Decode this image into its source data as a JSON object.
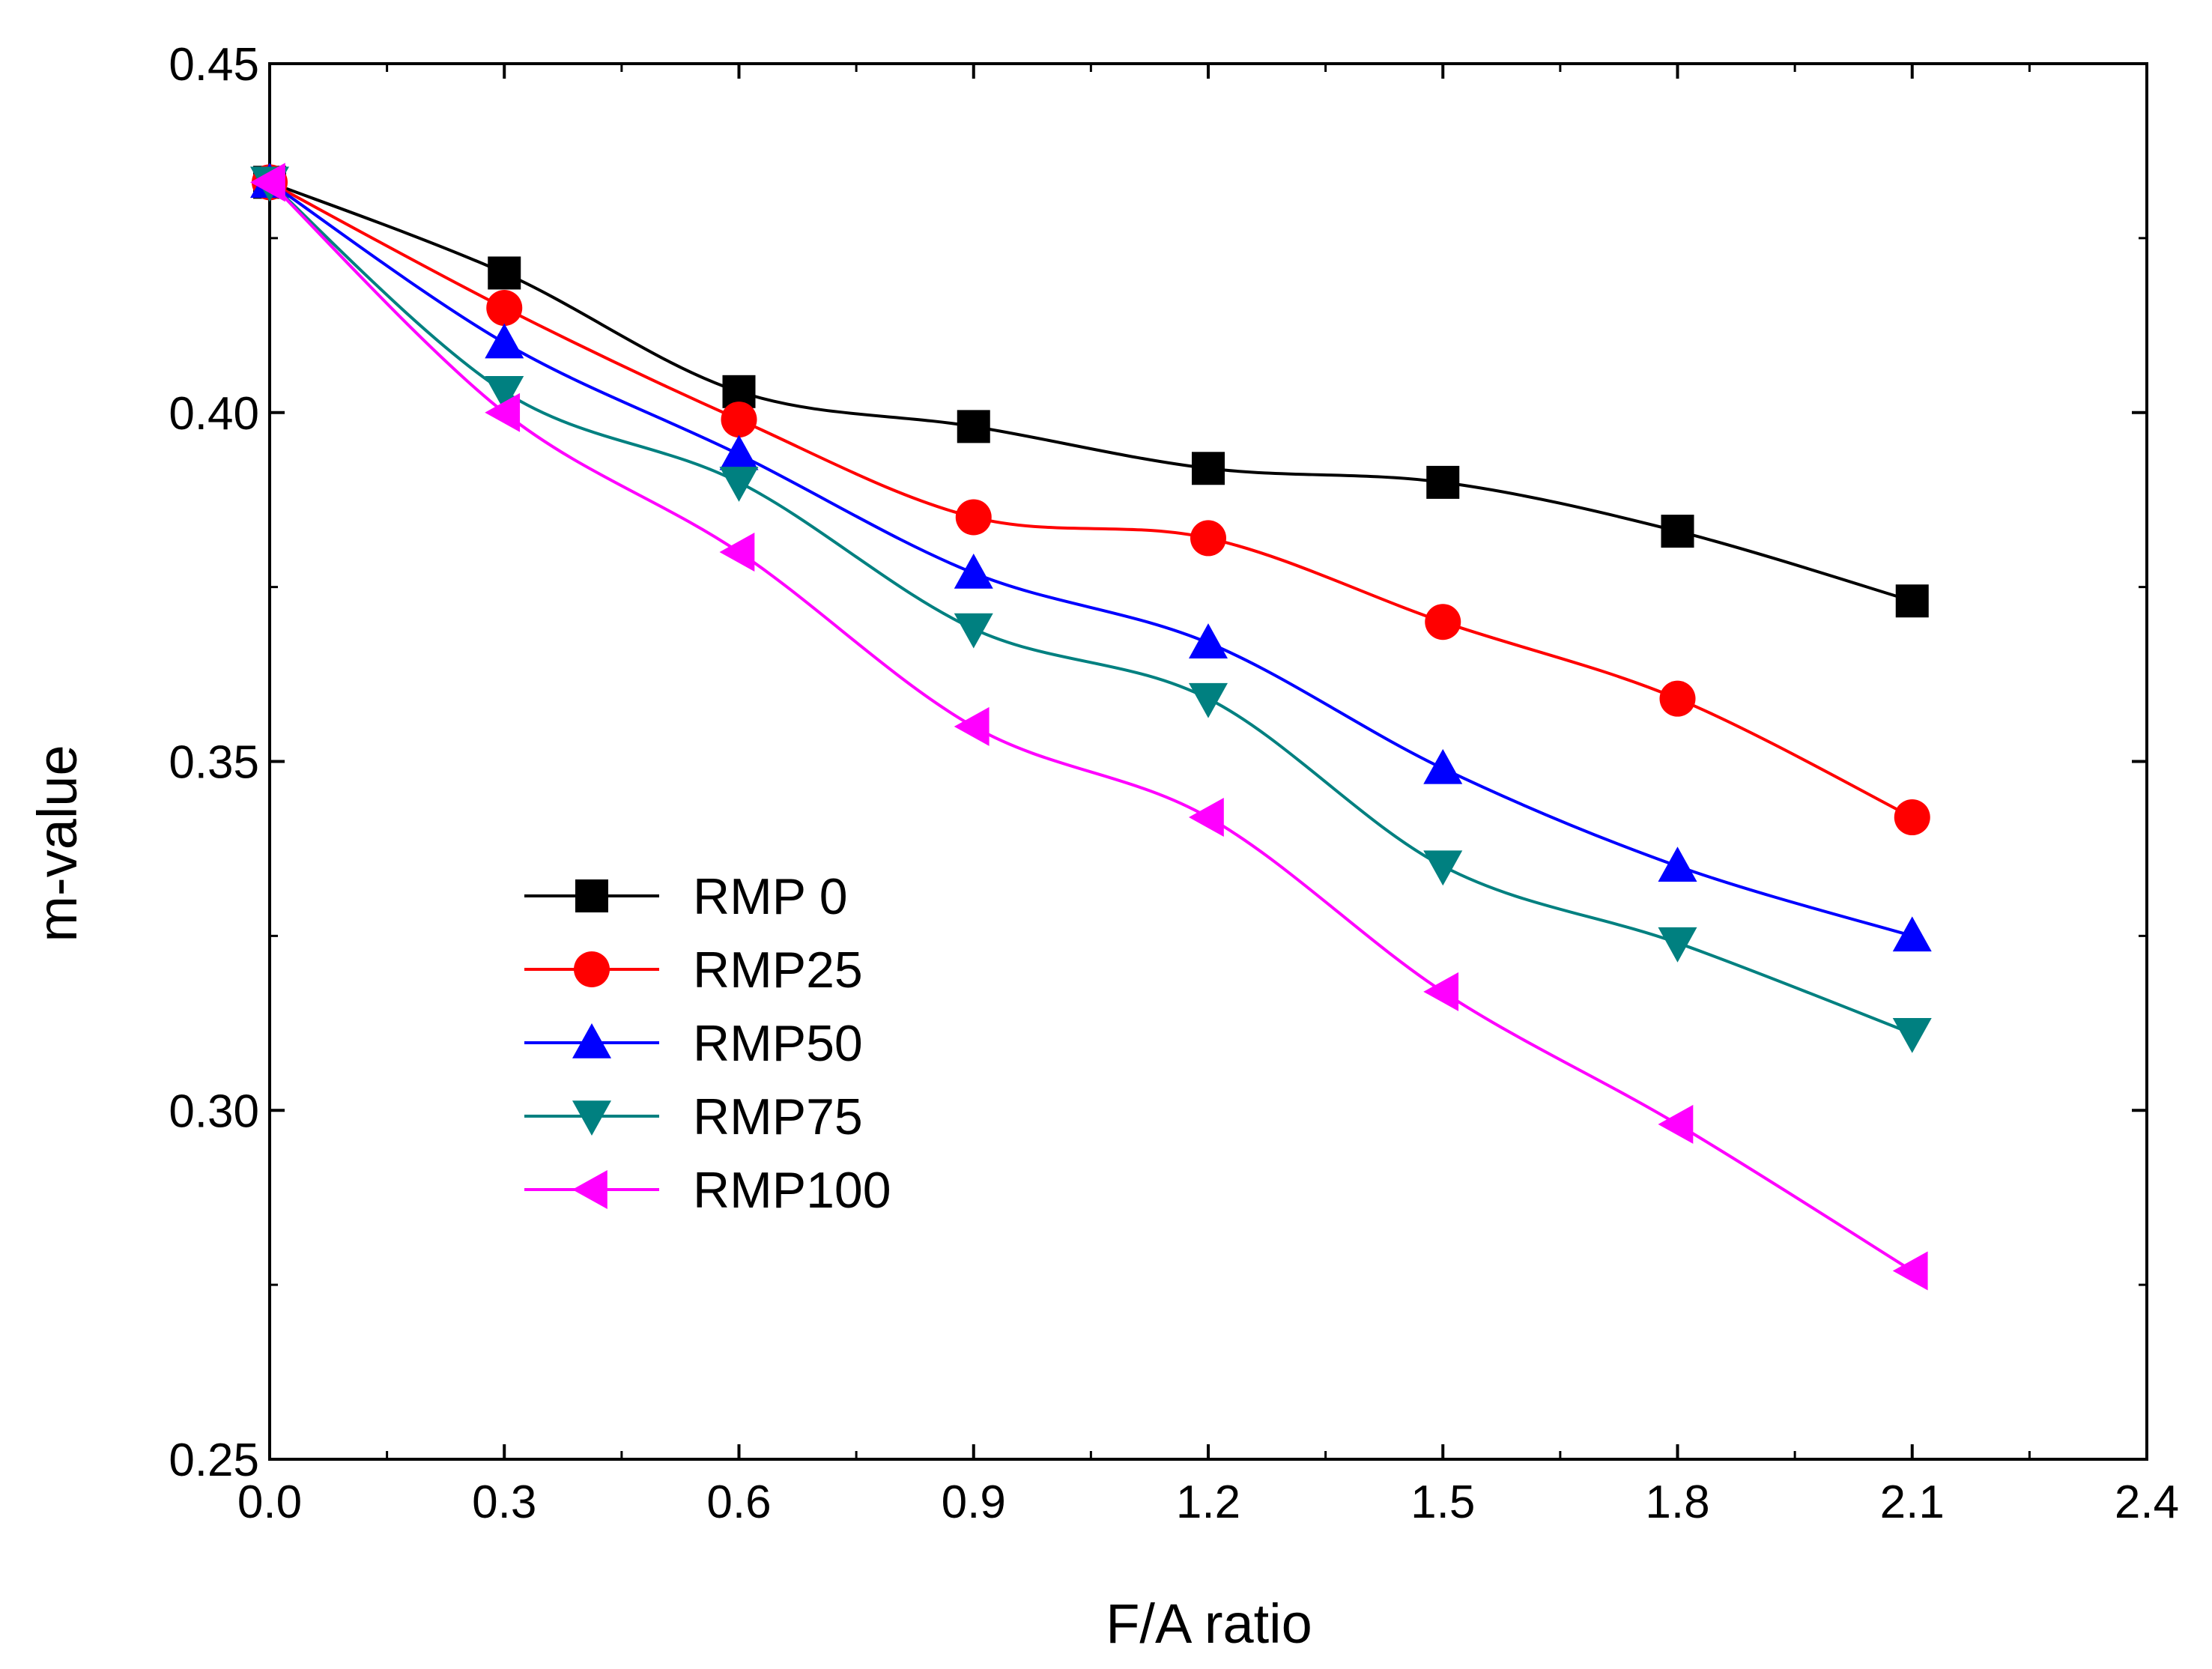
{
  "chart_data": {
    "type": "line",
    "title": "",
    "xlabel": "F/A ratio",
    "ylabel": "m-value",
    "xlim": [
      0.0,
      2.4
    ],
    "ylim": [
      0.25,
      0.45
    ],
    "xticks": [
      "0.0",
      "0.3",
      "0.6",
      "0.9",
      "1.2",
      "1.5",
      "1.8",
      "2.1",
      "2.4"
    ],
    "yticks": [
      "0.25",
      "0.30",
      "0.35",
      "0.40",
      "0.45"
    ],
    "grid": false,
    "legend_position": "lower-left",
    "x": [
      0.0,
      0.3,
      0.6,
      0.9,
      1.2,
      1.5,
      1.8,
      2.1
    ],
    "series": [
      {
        "name": "RMP 0",
        "color": "#000000",
        "marker": "square",
        "values": [
          0.433,
          0.42,
          0.403,
          0.398,
          0.392,
          0.39,
          0.383,
          0.373
        ]
      },
      {
        "name": "RMP25",
        "color": "#ff0000",
        "marker": "circle",
        "values": [
          0.433,
          0.415,
          0.399,
          0.385,
          0.382,
          0.37,
          0.359,
          0.342
        ]
      },
      {
        "name": "RMP50",
        "color": "#0000ff",
        "marker": "triangle-up",
        "values": [
          0.433,
          0.41,
          0.394,
          0.377,
          0.367,
          0.349,
          0.335,
          0.325
        ]
      },
      {
        "name": "RMP75",
        "color": "#008080",
        "marker": "triangle-down",
        "values": [
          0.433,
          0.403,
          0.39,
          0.369,
          0.359,
          0.335,
          0.324,
          0.311
        ]
      },
      {
        "name": "RMP100",
        "color": "#ff00ff",
        "marker": "triangle-left",
        "values": [
          0.433,
          0.4,
          0.38,
          0.355,
          0.342,
          0.317,
          0.298,
          0.277
        ]
      }
    ]
  }
}
